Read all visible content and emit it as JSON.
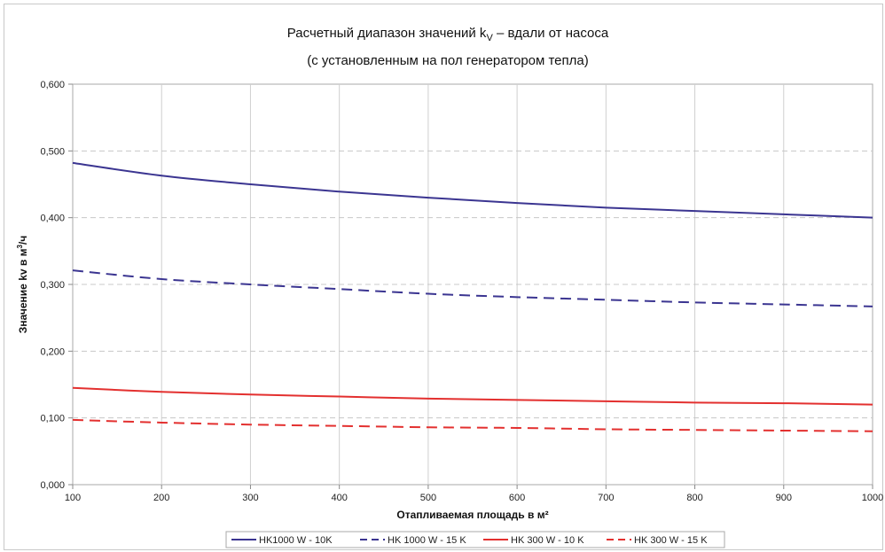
{
  "chart_data": {
    "type": "line",
    "title": "Расчетный диапазон значений k",
    "title_sub": "V",
    "title_rest": " – вдали от насоса",
    "subtitle": "(с установленным на пол генератором тепла)",
    "xlabel": "Отапливаемая площадь в м²",
    "ylabel_main": "Значение kv в м",
    "ylabel_sup": "3",
    "ylabel_end": "/ч",
    "x": [
      100,
      200,
      300,
      400,
      500,
      600,
      700,
      800,
      900,
      1000
    ],
    "xlim": [
      100,
      1000
    ],
    "ylim": [
      0,
      0.6
    ],
    "x_ticks": [
      "100",
      "200",
      "300",
      "400",
      "500",
      "600",
      "700",
      "800",
      "900",
      "1000"
    ],
    "y_ticks": [
      "0,000",
      "0,100",
      "0,200",
      "0,300",
      "0,400",
      "0,500",
      "0,600"
    ],
    "grid": true,
    "legend_position": "bottom",
    "series": [
      {
        "name": "HK1000 W - 10K",
        "color": "#3b3591",
        "dash": "solid",
        "values": [
          0.482,
          0.463,
          0.45,
          0.439,
          0.43,
          0.422,
          0.415,
          0.41,
          0.405,
          0.4
        ]
      },
      {
        "name": "HK 1000 W - 15 K",
        "color": "#3b3591",
        "dash": "dashed",
        "values": [
          0.321,
          0.308,
          0.3,
          0.293,
          0.286,
          0.281,
          0.277,
          0.273,
          0.27,
          0.267
        ]
      },
      {
        "name": "HK 300 W - 10 K",
        "color": "#e3302f",
        "dash": "solid",
        "values": [
          0.145,
          0.139,
          0.135,
          0.132,
          0.129,
          0.127,
          0.125,
          0.123,
          0.122,
          0.12
        ]
      },
      {
        "name": "HK 300  W - 15 K",
        "color": "#e3302f",
        "dash": "dashed",
        "values": [
          0.097,
          0.093,
          0.09,
          0.088,
          0.086,
          0.085,
          0.083,
          0.082,
          0.081,
          0.08
        ]
      }
    ]
  }
}
